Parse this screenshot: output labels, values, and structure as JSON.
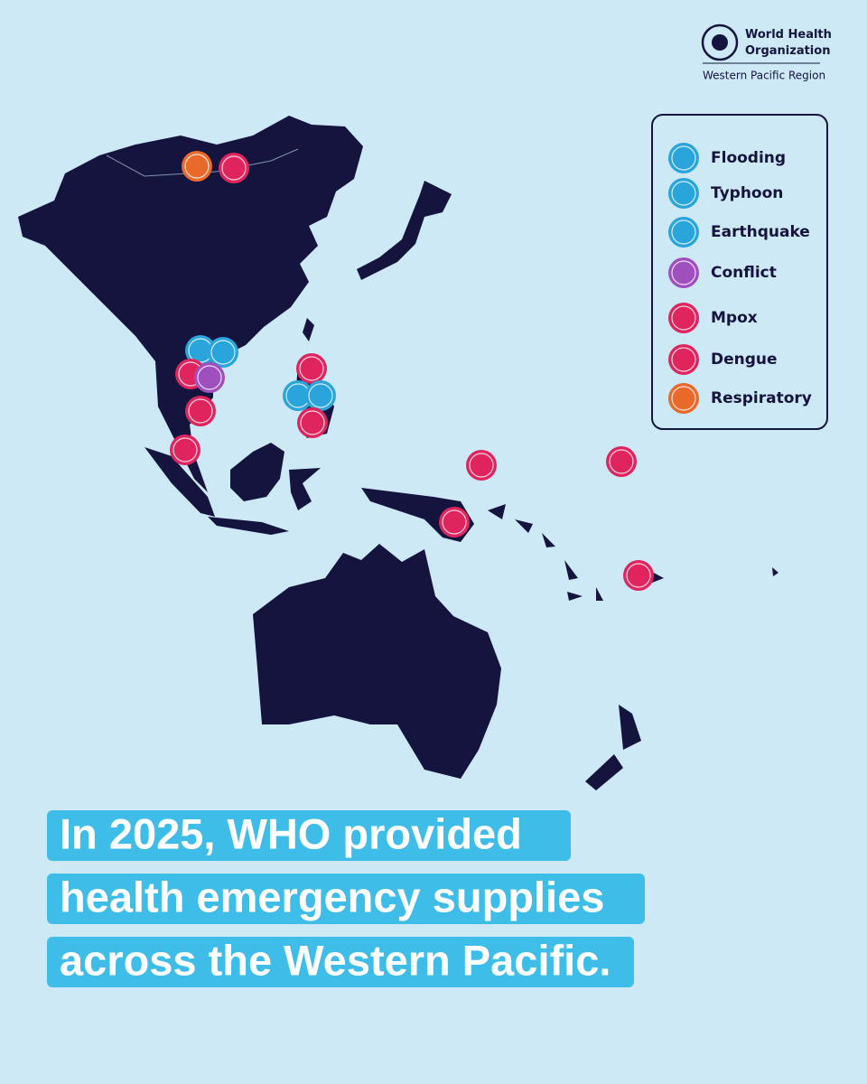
{
  "logo": {
    "name_lines": [
      "World Health",
      "Organization"
    ],
    "region": "Western Pacific Region"
  },
  "legend": {
    "items": [
      {
        "label": "Flooding",
        "color": "#2aa5dc"
      },
      {
        "label": "Typhoon",
        "color": "#2aa5dc"
      },
      {
        "label": "Earthquake",
        "color": "#2aa5dc"
      },
      {
        "label": "Conflict",
        "color": "#a04fbf"
      },
      {
        "label": "Mpox",
        "color": "#e0245e"
      },
      {
        "label": "Dengue",
        "color": "#e0245e"
      },
      {
        "label": "Respiratory",
        "color": "#e8692a"
      }
    ]
  },
  "headline": {
    "lines": [
      "In 2025, WHO provided",
      "health emergency supplies",
      "across the Western Pacific."
    ]
  }
}
